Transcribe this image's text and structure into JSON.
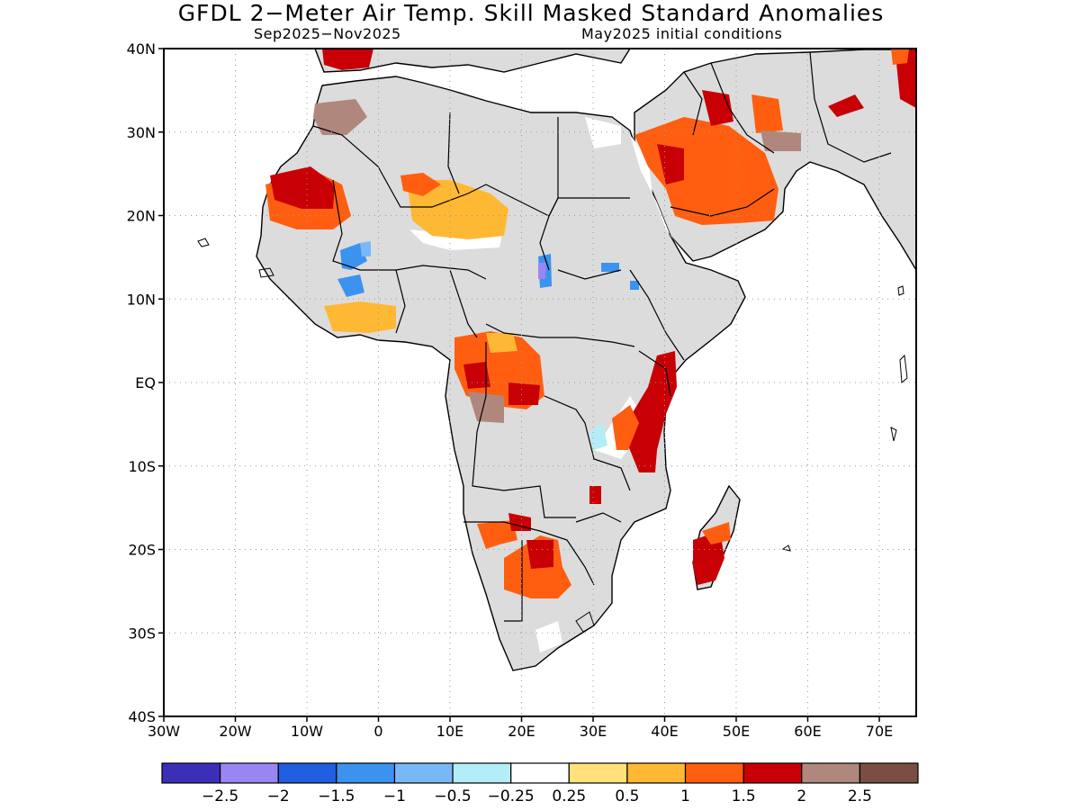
{
  "title": "GFDL 2−Meter Air Temp. Skill Masked Standard Anomalies",
  "subtitle_left": "Sep2025−Nov2025",
  "subtitle_right": "May2025 initial conditions",
  "lat_labels": [
    "40N",
    "30N",
    "20N",
    "10N",
    "EQ",
    "10S",
    "20S",
    "30S",
    "40S"
  ],
  "lon_labels": [
    "30W",
    "20W",
    "10W",
    "0",
    "10E",
    "20E",
    "30E",
    "40E",
    "50E",
    "60E",
    "70E"
  ],
  "colorbar": {
    "colors": [
      "#3b2fb8",
      "#9a86f2",
      "#1f5fe0",
      "#3b93ef",
      "#79b8f7",
      "#b3eef8",
      "#ffffff",
      "#ffe27a",
      "#ffb833",
      "#ff5e10",
      "#c80006",
      "#b0877c",
      "#7a4e42"
    ],
    "labels": [
      "−2.5",
      "−2",
      "−1.5",
      "−1",
      "−0.5",
      "−0.25",
      "0.25",
      "0.5",
      "1",
      "1.5",
      "2",
      "2.5"
    ]
  },
  "map_colors": {
    "masked": "#dcdcdc",
    "land_outline": "#000000",
    "grid": "#9a9a9a"
  }
}
